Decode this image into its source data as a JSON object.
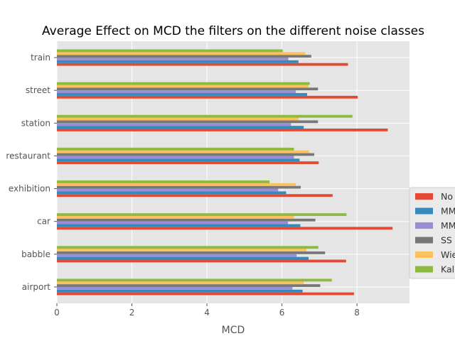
{
  "chart_data": {
    "type": "bar",
    "orientation": "horizontal",
    "title": "Average Effect on MCD the filters on the different noise classes",
    "xlabel": "MCD",
    "ylabel": "",
    "xlim": [
      0,
      9.4
    ],
    "xticks": [
      0,
      2,
      4,
      6,
      8
    ],
    "grid": true,
    "legend_placement": "right",
    "categories": [
      "airport",
      "babble",
      "car",
      "exhibition",
      "restaurant",
      "station",
      "street",
      "train"
    ],
    "series": [
      {
        "name": "No",
        "color": "#E24A33",
        "values": [
          7.92,
          7.71,
          8.95,
          7.35,
          6.98,
          8.82,
          8.02,
          7.76
        ]
      },
      {
        "name": "MM",
        "color": "#348ABD",
        "values": [
          6.55,
          6.71,
          6.49,
          6.11,
          6.47,
          6.58,
          6.67,
          6.44
        ]
      },
      {
        "name": "MM",
        "color": "#988ED5",
        "values": [
          6.28,
          6.39,
          6.16,
          5.9,
          6.32,
          6.24,
          6.37,
          6.17
        ]
      },
      {
        "name": "SS",
        "color": "#777777",
        "values": [
          7.02,
          7.15,
          6.89,
          6.5,
          6.86,
          6.96,
          6.96,
          6.78
        ]
      },
      {
        "name": "Wie",
        "color": "#FBC15E",
        "values": [
          6.58,
          6.65,
          6.32,
          6.37,
          6.72,
          6.44,
          6.71,
          6.62
        ]
      },
      {
        "name": "Kal",
        "color": "#8EBA42",
        "values": [
          7.33,
          6.97,
          7.72,
          5.67,
          6.32,
          7.88,
          6.74,
          6.02
        ]
      }
    ]
  }
}
